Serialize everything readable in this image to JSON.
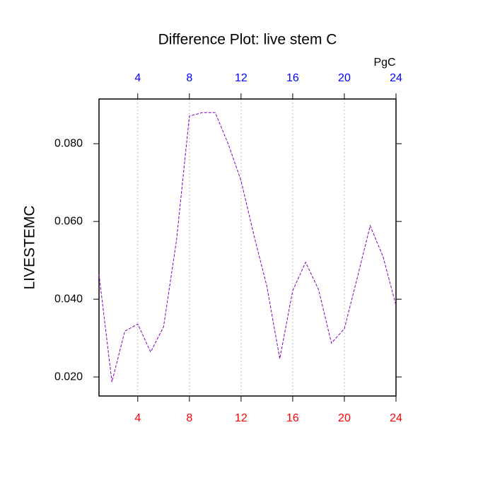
{
  "chart_data": {
    "type": "line",
    "title": "Difference Plot: live stem C",
    "y_label": "LIVESTEMC",
    "top_axis_label": "PgC",
    "x": [
      1,
      2,
      3,
      4,
      5,
      6,
      7,
      8,
      9,
      10,
      11,
      12,
      13,
      14,
      15,
      16,
      17,
      18,
      19,
      20,
      21,
      22,
      23,
      24
    ],
    "series": [
      {
        "name": "LIVESTEMC",
        "color": "#8000c0",
        "values": [
          0.0464,
          0.0187,
          0.0318,
          0.0336,
          0.0264,
          0.0329,
          0.0551,
          0.0871,
          0.088,
          0.088,
          0.08,
          0.0705,
          0.0564,
          0.0433,
          0.0247,
          0.0422,
          0.0495,
          0.0425,
          0.0287,
          0.0324,
          0.0455,
          0.0589,
          0.0509,
          0.0384
        ]
      }
    ],
    "xlim": [
      1,
      24
    ],
    "ylim": [
      0.0151,
      0.0915
    ],
    "xticks": [
      4,
      8,
      12,
      16,
      20,
      24
    ],
    "x_tick_color": "red",
    "x2ticks": [
      4,
      8,
      12,
      16,
      20,
      24
    ],
    "x2_tick_color": "blue",
    "yticks": [
      {
        "value": 0.02,
        "label": "0.020"
      },
      {
        "value": 0.04,
        "label": "0.040"
      },
      {
        "value": 0.06,
        "label": "0.060"
      },
      {
        "value": 0.08,
        "label": "0.080"
      }
    ],
    "grid": true
  }
}
